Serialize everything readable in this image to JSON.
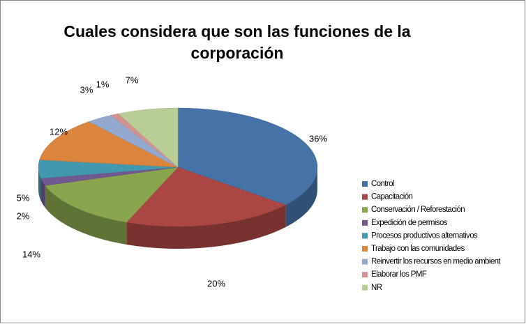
{
  "chart_data": {
    "type": "pie",
    "title": "Cuales considera que son las funciones de la corporación",
    "categories": [
      "Control",
      "Capacitación",
      "Conservación / Reforestación",
      "Expedición de permisos",
      "Procesos productivos alternativos",
      "Trabajo con las comunidades",
      "Reinvertir los recursos en medio ambient",
      "Elaborar los PMF",
      "NR"
    ],
    "values": [
      36,
      20,
      14,
      2,
      5,
      12,
      3,
      1,
      7
    ],
    "value_labels": [
      "36%",
      "20%",
      "14%",
      "2%",
      "5%",
      "12%",
      "3%",
      "1%",
      "7%"
    ],
    "colors": [
      "#4572a7",
      "#aa4643",
      "#89a54e",
      "#71588f",
      "#4198af",
      "#db843d",
      "#93a9cf",
      "#d19392",
      "#b9cd96"
    ],
    "legend": "right"
  }
}
